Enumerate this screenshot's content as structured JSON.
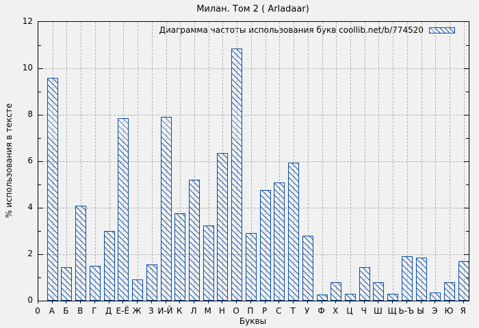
{
  "chart_data": {
    "type": "bar",
    "title": "Милан. Том 2 ( Arladaar)",
    "legend": "Диаграмма частоты использования букв coollib.net/b/774520",
    "legend_position": "top-right-inside",
    "xlabel": "Буквы",
    "ylabel": "% использования в тексте",
    "ylim": [
      0,
      12
    ],
    "yticks": [
      0,
      2,
      4,
      6,
      8,
      10,
      12
    ],
    "x_origin_label": "0",
    "grid": true,
    "bar_color": "#0b4da2",
    "background_color": "#f1f1f1",
    "grid_color": "#b0b0b0",
    "categories": [
      "А",
      "Б",
      "В",
      "Г",
      "Д",
      "Е-Ё",
      "Ж",
      "З",
      "И-Й",
      "К",
      "Л",
      "М",
      "Н",
      "О",
      "П",
      "Р",
      "С",
      "Т",
      "У",
      "Ф",
      "Х",
      "Ц",
      "Ч",
      "Ш",
      "Щ",
      "Ь-Ъ",
      "Ы",
      "Э",
      "Ю",
      "Я"
    ],
    "values": [
      9.6,
      1.45,
      4.1,
      1.5,
      3.0,
      7.85,
      0.9,
      1.55,
      7.9,
      3.75,
      5.2,
      3.25,
      6.35,
      10.85,
      2.9,
      4.75,
      5.1,
      5.95,
      2.8,
      0.25,
      0.8,
      0.3,
      1.45,
      0.8,
      0.3,
      1.9,
      1.85,
      0.35,
      0.8,
      1.7
    ]
  }
}
